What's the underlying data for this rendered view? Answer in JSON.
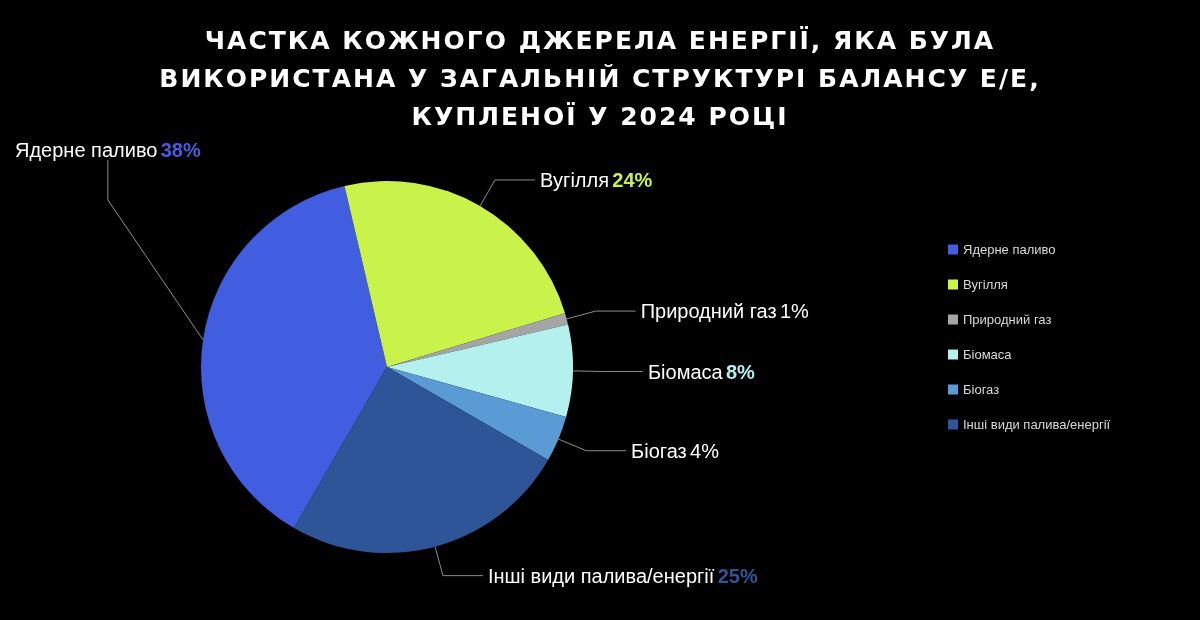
{
  "chart_data": {
    "type": "pie",
    "title": "ЧАСТКА КОЖНОГО ДЖЕРЕЛА ЕНЕРГІЇ, ЯКА БУЛА ВИКОРИСТАНА У ЗАГАЛЬНІЙ СТРУКТУРІ БАЛАНСУ Е/Е, КУПЛЕНОЇ У 2024 РОЦІ",
    "categories": [
      "Ядерне паливо",
      "Вугілля",
      "Природний газ",
      "Біомаса",
      "Біогаз",
      "Інші види палива/енергії"
    ],
    "values": [
      38,
      24,
      1,
      8,
      4,
      25
    ],
    "colors": [
      "#425ee0",
      "#c9f34a",
      "#a5a5a5",
      "#b4f1ee",
      "#5b9bd5",
      "#2e5597"
    ],
    "value_labels": [
      "38%",
      "24%",
      "1%",
      "8%",
      "4%",
      "25%"
    ],
    "legend": "right"
  }
}
